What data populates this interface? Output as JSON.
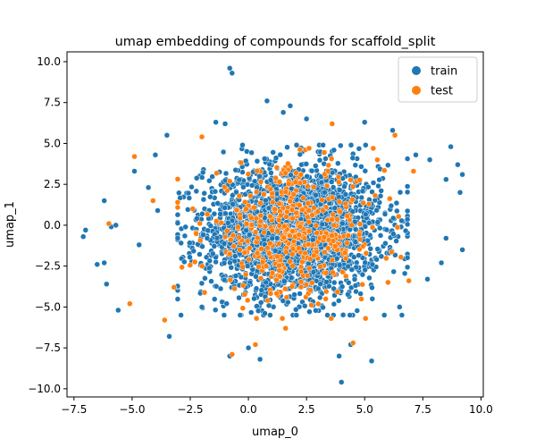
{
  "chart_data": {
    "type": "scatter",
    "title": "umap embedding of compounds for scaffold_split",
    "xlabel": "umap_0",
    "ylabel": "umap_1",
    "xlim": [
      -7.8,
      10.1
    ],
    "ylim": [
      -10.5,
      10.6
    ],
    "xticks": [
      -7.5,
      -5.0,
      -2.5,
      0.0,
      2.5,
      5.0,
      7.5,
      10.0
    ],
    "yticks": [
      -10.0,
      -7.5,
      -5.0,
      -2.5,
      0.0,
      2.5,
      5.0,
      7.5,
      10.0
    ],
    "xtick_labels": [
      "−7.5",
      "−5.0",
      "−2.5",
      "0.0",
      "2.5",
      "5.0",
      "7.5",
      "10.0"
    ],
    "ytick_labels": [
      "−10.0",
      "−7.5",
      "−5.0",
      "−2.5",
      "0.0",
      "2.5",
      "5.0",
      "7.5",
      "10.0"
    ],
    "grid": false,
    "legend_position": "top-right",
    "series": [
      {
        "name": "train",
        "color": "#1f77b4",
        "cluster": {
          "center": [
            1.9,
            -0.3
          ],
          "spread": [
            1.9,
            2.0
          ],
          "count": 2600
        },
        "outliers": [
          [
            -0.8,
            9.6
          ],
          [
            -0.7,
            9.3
          ],
          [
            0.8,
            7.6
          ],
          [
            1.8,
            7.3
          ],
          [
            -7.0,
            -0.3
          ],
          [
            -7.1,
            -0.7
          ],
          [
            -6.5,
            -2.4
          ],
          [
            -6.2,
            -2.3
          ],
          [
            -6.1,
            -3.6
          ],
          [
            -5.9,
            -0.1
          ],
          [
            -5.7,
            0.0
          ],
          [
            -5.6,
            -5.2
          ],
          [
            -6.2,
            1.5
          ],
          [
            -4.9,
            3.3
          ],
          [
            -4.3,
            2.3
          ],
          [
            -3.5,
            5.5
          ],
          [
            -3.4,
            -6.8
          ],
          [
            -2.9,
            -5.5
          ],
          [
            -1.4,
            6.3
          ],
          [
            -1.0,
            6.2
          ],
          [
            -0.8,
            -8.0
          ],
          [
            0.0,
            -7.5
          ],
          [
            0.5,
            -8.2
          ],
          [
            1.5,
            6.9
          ],
          [
            2.5,
            6.5
          ],
          [
            3.9,
            -8.0
          ],
          [
            4.0,
            -9.6
          ],
          [
            4.4,
            -7.3
          ],
          [
            5.0,
            6.3
          ],
          [
            5.3,
            -8.3
          ],
          [
            6.5,
            -5.0
          ],
          [
            7.7,
            -3.3
          ],
          [
            8.3,
            -2.3
          ],
          [
            8.5,
            -0.8
          ],
          [
            8.7,
            4.8
          ],
          [
            9.0,
            3.7
          ],
          [
            9.1,
            2.0
          ],
          [
            9.2,
            -1.5
          ],
          [
            9.2,
            3.1
          ],
          [
            8.5,
            2.8
          ],
          [
            7.8,
            4.0
          ],
          [
            -4.7,
            -1.2
          ],
          [
            -3.9,
            0.9
          ],
          [
            -4.0,
            4.3
          ],
          [
            -2.0,
            -5.0
          ],
          [
            6.2,
            5.8
          ],
          [
            6.6,
            -5.5
          ],
          [
            7.2,
            4.3
          ]
        ]
      },
      {
        "name": "test",
        "color": "#ff7f0e",
        "cluster": {
          "center": [
            1.9,
            -0.5
          ],
          "spread": [
            1.9,
            2.0
          ],
          "count": 420
        },
        "outliers": [
          [
            -4.9,
            4.2
          ],
          [
            -6.0,
            0.1
          ],
          [
            -5.1,
            -4.8
          ],
          [
            -3.6,
            -5.8
          ],
          [
            -0.7,
            -7.9
          ],
          [
            0.3,
            -7.3
          ],
          [
            1.6,
            -6.3
          ],
          [
            3.6,
            6.2
          ],
          [
            4.5,
            -7.2
          ],
          [
            6.3,
            5.5
          ],
          [
            7.1,
            3.3
          ],
          [
            6.0,
            -3.5
          ],
          [
            -2.0,
            5.4
          ],
          [
            -3.2,
            -3.8
          ],
          [
            6.9,
            -3.4
          ],
          [
            -4.1,
            1.5
          ]
        ]
      }
    ]
  }
}
